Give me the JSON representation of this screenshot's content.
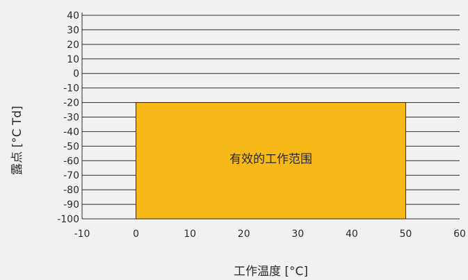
{
  "chart_data": {
    "type": "area",
    "title": "",
    "xlabel": "工作温度 [°C]",
    "ylabel": "露点 [°C Td]",
    "x_ticks": [
      -10,
      0,
      10,
      20,
      30,
      40,
      50,
      60
    ],
    "y_ticks": [
      40,
      30,
      20,
      10,
      0,
      -10,
      -20,
      -30,
      -40,
      -50,
      -60,
      -70,
      -80,
      -90,
      -100
    ],
    "xlim": [
      -10,
      60
    ],
    "ylim": [
      -100,
      40
    ],
    "grid": true,
    "regions": [
      {
        "label": "有效的工作范围",
        "x": [
          0,
          50
        ],
        "y": [
          -100,
          -20
        ],
        "color": "#f7b81a"
      }
    ]
  },
  "colors": {
    "background": "#f1f1f1",
    "grid": "#2b2b2b",
    "region_fill": "#f7b81a"
  }
}
